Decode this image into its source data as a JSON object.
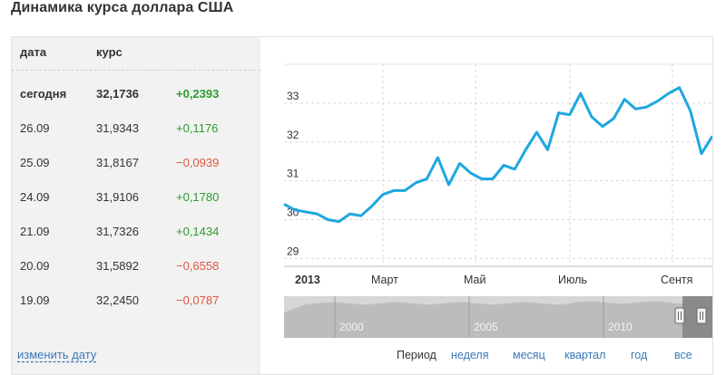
{
  "title": "Динамика курса доллара США",
  "table": {
    "col_date": "дата",
    "col_rate": "курс",
    "rows": [
      {
        "date": "сегодня",
        "rate": "32,1736",
        "change": "+0,2393",
        "dir": "pos"
      },
      {
        "date": "26.09",
        "rate": "31,9343",
        "change": "+0,1176",
        "dir": "pos"
      },
      {
        "date": "25.09",
        "rate": "31,8167",
        "change": "−0,0939",
        "dir": "neg"
      },
      {
        "date": "24.09",
        "rate": "31,9106",
        "change": "+0,1780",
        "dir": "pos"
      },
      {
        "date": "21.09",
        "rate": "31,7326",
        "change": "+0,1434",
        "dir": "pos"
      },
      {
        "date": "20.09",
        "rate": "31,5892",
        "change": "−0,6558",
        "dir": "neg"
      },
      {
        "date": "19.09",
        "rate": "32,2450",
        "change": "−0,0787",
        "dir": "neg"
      }
    ]
  },
  "change_date_link": "изменить дату",
  "colors": {
    "line": "#1ea7e1",
    "positive": "#2e9b2e",
    "negative": "#e0553e",
    "link": "#3a78b6"
  },
  "chart_data": {
    "type": "line",
    "ylim": [
      28.8,
      34.0
    ],
    "y_ticks": [
      29,
      30,
      31,
      32,
      33
    ],
    "x_ticks": [
      "2013",
      "Март",
      "Май",
      "Июль",
      "Сентя"
    ],
    "grid": "dashed vertical + horizontal",
    "series": [
      {
        "values": [
          30.4,
          30.25,
          30.2,
          30.15,
          30.0,
          29.95,
          30.15,
          30.1,
          30.35,
          30.65,
          30.75,
          30.75,
          30.95,
          31.05,
          31.6,
          30.9,
          31.45,
          31.2,
          31.05,
          31.05,
          31.4,
          31.3,
          31.8,
          32.25,
          31.8,
          32.75,
          32.7,
          33.25,
          32.65,
          32.4,
          32.6,
          33.1,
          32.85,
          32.9,
          33.05,
          33.25,
          33.4,
          32.8,
          31.7,
          32.15
        ]
      }
    ]
  },
  "navigator": {
    "labels": [
      "2000",
      "2005",
      "2010"
    ]
  },
  "periods": {
    "label": "Период",
    "options": [
      "неделя",
      "месяц",
      "квартал",
      "год",
      "все"
    ]
  }
}
